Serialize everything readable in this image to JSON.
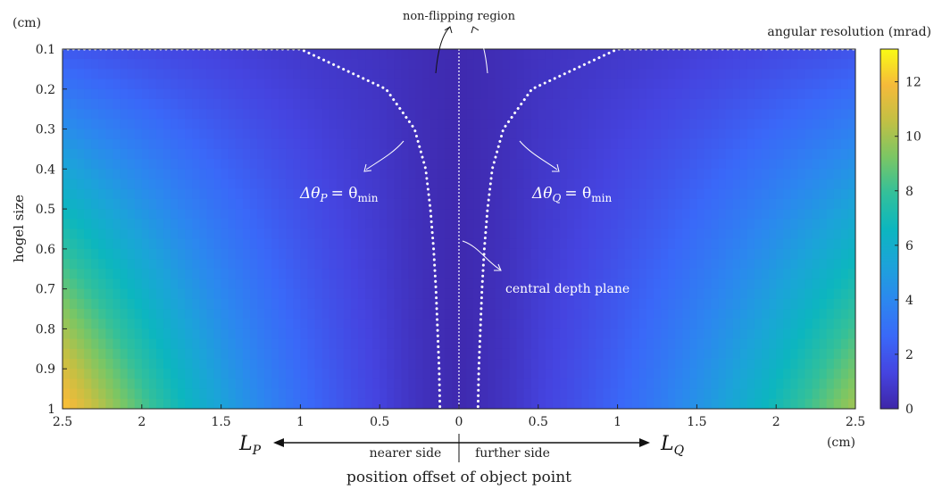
{
  "chart_data": {
    "type": "heatmap",
    "title": "",
    "xlabel": "position offset of object point",
    "xunit": "(cm)",
    "ylabel": "hogel size",
    "yunit": "(cm)",
    "xlim": [
      -2.5,
      2.5
    ],
    "ylim": [
      0.1,
      1.0
    ],
    "x_tick_labels": [
      "2.5",
      "2",
      "1.5",
      "1",
      "0.5",
      "0",
      "0.5",
      "1",
      "1.5",
      "2",
      "2.5"
    ],
    "x_tick_values": [
      -2.5,
      -2,
      -1.5,
      -1,
      -0.5,
      0,
      0.5,
      1,
      1.5,
      2,
      2.5
    ],
    "y_tick_labels": [
      "0.1",
      "0.2",
      "0.3",
      "0.4",
      "0.5",
      "0.6",
      "0.7",
      "0.8",
      "0.9",
      "1"
    ],
    "y_tick_values": [
      0.1,
      0.2,
      0.3,
      0.4,
      0.5,
      0.6,
      0.7,
      0.8,
      0.9,
      1.0
    ],
    "colorbar": {
      "label": "angular resolution (mrad)",
      "range": [
        0,
        13.2
      ],
      "tick_labels": [
        "0",
        "2",
        "4",
        "6",
        "8",
        "10",
        "12"
      ],
      "tick_values": [
        0,
        2,
        4,
        6,
        8,
        10,
        12
      ],
      "colormap": "parula"
    },
    "annotations": {
      "non_flipping": "non-flipping region",
      "dtheta_p_lhs": "Δθ",
      "dtheta_p_sub": "P",
      "dtheta_q_lhs": "Δθ",
      "dtheta_q_sub": "Q",
      "eq_rhs": "= θ",
      "eq_sub": "min",
      "central_plane": "central depth plane",
      "nearer": "nearer side",
      "further": "further side",
      "lp": "L",
      "lp_sub": "P",
      "lq": "L",
      "lq_sub": "Q"
    },
    "boundary_curve_offset_cm": [
      [
        0.1,
        1.0
      ],
      [
        0.2,
        0.46
      ],
      [
        0.3,
        0.28
      ],
      [
        0.4,
        0.21
      ],
      [
        0.5,
        0.18
      ],
      [
        0.6,
        0.16
      ],
      [
        0.7,
        0.145
      ],
      [
        0.8,
        0.135
      ],
      [
        0.9,
        0.125
      ],
      [
        1.0,
        0.12
      ]
    ],
    "boundary_top_x": 1.25
  }
}
